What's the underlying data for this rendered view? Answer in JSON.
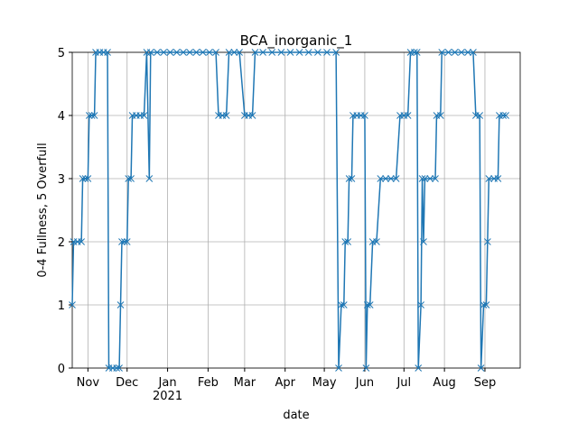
{
  "chart_data": {
    "type": "line",
    "title": "BCA_inorganic_1",
    "xlabel": "date",
    "ylabel": "0-4 Fullness, 5 Overfull",
    "x": [
      "2020-10-20",
      "2020-10-21",
      "2020-10-24",
      "2020-10-27",
      "2020-10-28",
      "2020-10-30",
      "2020-11-01",
      "2020-11-02",
      "2020-11-04",
      "2020-11-06",
      "2020-11-07",
      "2020-11-10",
      "2020-11-13",
      "2020-11-16",
      "2020-11-17",
      "2020-11-20",
      "2020-11-23",
      "2020-11-25",
      "2020-11-26",
      "2020-11-27",
      "2020-11-29",
      "2020-12-01",
      "2020-12-02",
      "2020-12-04",
      "2020-12-05",
      "2020-12-08",
      "2020-12-11",
      "2020-12-14",
      "2020-12-16",
      "2020-12-18",
      "2020-12-19",
      "2020-12-24",
      "2020-12-29",
      "2021-01-03",
      "2021-01-08",
      "2021-01-13",
      "2021-01-18",
      "2021-01-23",
      "2021-01-28",
      "2021-02-02",
      "2021-02-07",
      "2021-02-09",
      "2021-02-12",
      "2021-02-15",
      "2021-02-17",
      "2021-02-21",
      "2021-02-25",
      "2021-03-01",
      "2021-03-04",
      "2021-03-07",
      "2021-03-09",
      "2021-03-15",
      "2021-03-22",
      "2021-03-29",
      "2021-04-05",
      "2021-04-12",
      "2021-04-19",
      "2021-04-26",
      "2021-05-03",
      "2021-05-10",
      "2021-05-12",
      "2021-05-14",
      "2021-05-16",
      "2021-05-17",
      "2021-05-19",
      "2021-05-20",
      "2021-05-22",
      "2021-05-23",
      "2021-05-26",
      "2021-05-29",
      "2021-06-01",
      "2021-06-02",
      "2021-06-03",
      "2021-06-05",
      "2021-06-07",
      "2021-06-10",
      "2021-06-13",
      "2021-06-17",
      "2021-06-21",
      "2021-06-25",
      "2021-06-28",
      "2021-07-01",
      "2021-07-04",
      "2021-07-06",
      "2021-07-09",
      "2021-07-11",
      "2021-07-12",
      "2021-07-14",
      "2021-07-15",
      "2021-07-16",
      "2021-07-17",
      "2021-07-21",
      "2021-07-25",
      "2021-07-26",
      "2021-07-29",
      "2021-07-30",
      "2021-08-04",
      "2021-08-09",
      "2021-08-14",
      "2021-08-19",
      "2021-08-23",
      "2021-08-25",
      "2021-08-28",
      "2021-08-29",
      "2021-08-31",
      "2021-09-02",
      "2021-09-03",
      "2021-09-04",
      "2021-09-08",
      "2021-09-11",
      "2021-09-12",
      "2021-09-15",
      "2021-09-17"
    ],
    "series": [
      {
        "color": "#1f77b4",
        "values": [
          1,
          2,
          2,
          2,
          3,
          3,
          3,
          4,
          4,
          4,
          5,
          5,
          5,
          5,
          0,
          0,
          0,
          0,
          1,
          2,
          2,
          2,
          3,
          3,
          4,
          4,
          4,
          4,
          5,
          3,
          5,
          5,
          5,
          5,
          5,
          5,
          5,
          5,
          5,
          5,
          5,
          4,
          4,
          4,
          5,
          5,
          5,
          4,
          4,
          4,
          5,
          5,
          5,
          5,
          5,
          5,
          5,
          5,
          5,
          5,
          0,
          1,
          1,
          2,
          2,
          3,
          3,
          4,
          4,
          4,
          4,
          0,
          1,
          1,
          2,
          2,
          3,
          3,
          3,
          3,
          4,
          4,
          4,
          5,
          5,
          5,
          0,
          1,
          3,
          2,
          3,
          3,
          3,
          4,
          4,
          5,
          5,
          5,
          5,
          5,
          5,
          4,
          4,
          0,
          1,
          1,
          2,
          3,
          3,
          3,
          4,
          4,
          4
        ]
      }
    ],
    "xlim": [
      "2020-10-20",
      "2021-09-28"
    ],
    "xticks": [
      {
        "value": "2020-11-01",
        "label": "Nov"
      },
      {
        "value": "2020-12-01",
        "label": "Dec"
      },
      {
        "value": "2021-01-01",
        "label": "Jan\n2021"
      },
      {
        "value": "2021-02-01",
        "label": "Feb"
      },
      {
        "value": "2021-03-01",
        "label": "Mar"
      },
      {
        "value": "2021-04-01",
        "label": "Apr"
      },
      {
        "value": "2021-05-01",
        "label": "May"
      },
      {
        "value": "2021-06-01",
        "label": "Jun"
      },
      {
        "value": "2021-07-01",
        "label": "Jul"
      },
      {
        "value": "2021-08-01",
        "label": "Aug"
      },
      {
        "value": "2021-09-01",
        "label": "Sep"
      }
    ],
    "ylim": [
      0,
      5
    ],
    "yticks": [
      0,
      1,
      2,
      3,
      4,
      5
    ],
    "grid": true
  }
}
